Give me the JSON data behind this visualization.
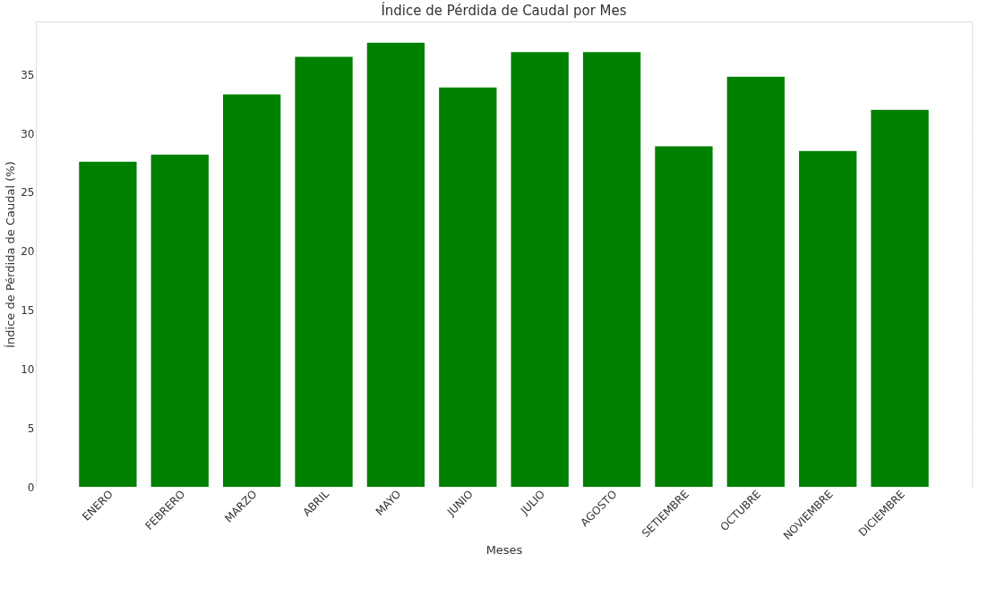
{
  "chart_data": {
    "type": "bar",
    "title": "Índice de Pérdida de Caudal por Mes",
    "xlabel": "Meses",
    "ylabel": "Índice de Pérdida de Caudal (%)",
    "categories": [
      "ENERO",
      "FEBRERO",
      "MARZO",
      "ABRIL",
      "MAYO",
      "JUNIO",
      "JULIO",
      "AGOSTO",
      "SETIEMBRE",
      "OCTUBRE",
      "NOVIEMBRE",
      "DICIEMBRE"
    ],
    "values": [
      27.6,
      28.2,
      33.3,
      36.5,
      37.7,
      33.9,
      36.9,
      36.9,
      28.9,
      34.8,
      28.5,
      32.0
    ],
    "color": "#008000",
    "ylim": [
      0,
      39.5
    ],
    "yticks": [
      0,
      5,
      10,
      15,
      20,
      25,
      30,
      35
    ],
    "grid": true
  }
}
